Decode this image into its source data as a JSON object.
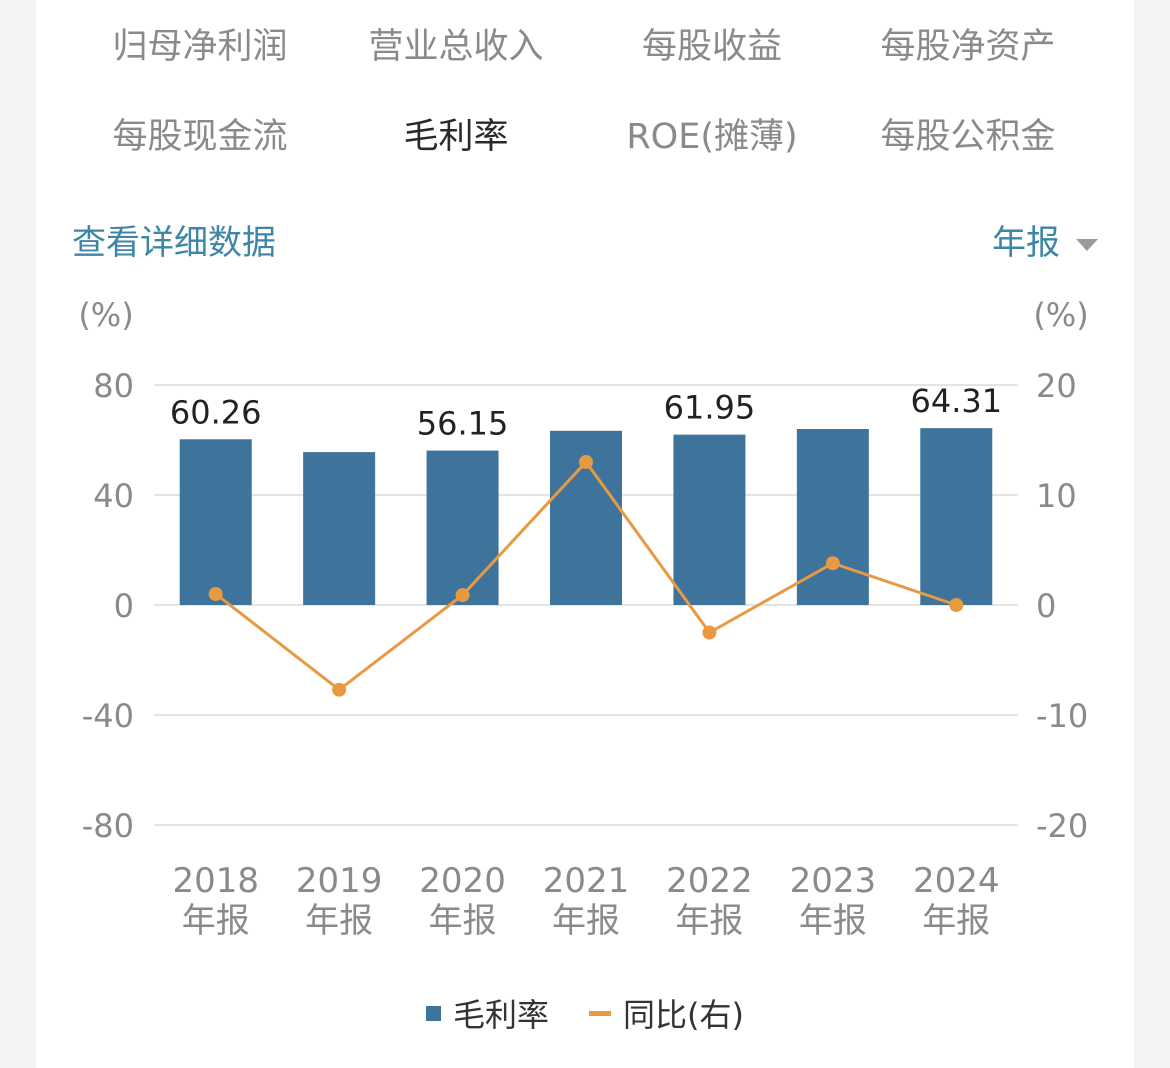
{
  "tabs": [
    {
      "label": "归母净利润",
      "active": false
    },
    {
      "label": "营业总收入",
      "active": false
    },
    {
      "label": "每股收益",
      "active": false
    },
    {
      "label": "每股净资产",
      "active": false
    },
    {
      "label": "每股现金流",
      "active": false
    },
    {
      "label": "毛利率",
      "active": true
    },
    {
      "label": "ROE(摊薄)",
      "active": false
    },
    {
      "label": "每股公积金",
      "active": false
    }
  ],
  "header": {
    "detail_link": "查看详细数据",
    "period": "年报"
  },
  "colors": {
    "bar": "#3e739c",
    "line": "#e89a43",
    "link": "#3d86a6"
  },
  "chart_data": {
    "type": "bar",
    "categories": [
      [
        "2018",
        "年报"
      ],
      [
        "2019",
        "年报"
      ],
      [
        "2020",
        "年报"
      ],
      [
        "2021",
        "年报"
      ],
      [
        "2022",
        "年报"
      ],
      [
        "2023",
        "年报"
      ],
      [
        "2024",
        "年报"
      ]
    ],
    "left_axis": {
      "unit": "(%)",
      "ticks": [
        80,
        40,
        0,
        -40,
        -80
      ],
      "ylim": [
        -80,
        80
      ]
    },
    "right_axis": {
      "unit": "(%)",
      "ticks": [
        20,
        10,
        0,
        -10,
        -20
      ],
      "ylim": [
        -20,
        20
      ]
    },
    "series": [
      {
        "name": "毛利率",
        "type": "bar",
        "axis": "left",
        "values": [
          60.26,
          55.6,
          56.15,
          63.35,
          61.95,
          64.0,
          64.31
        ],
        "labels": [
          "60.26",
          "",
          "56.15",
          "",
          "61.95",
          "",
          "64.31"
        ]
      },
      {
        "name": "同比(右)",
        "type": "line",
        "axis": "right",
        "values": [
          1.0,
          -7.7,
          0.9,
          13.0,
          -2.5,
          3.8,
          0.0
        ]
      }
    ],
    "grid": true,
    "legend": "bottom-center"
  }
}
